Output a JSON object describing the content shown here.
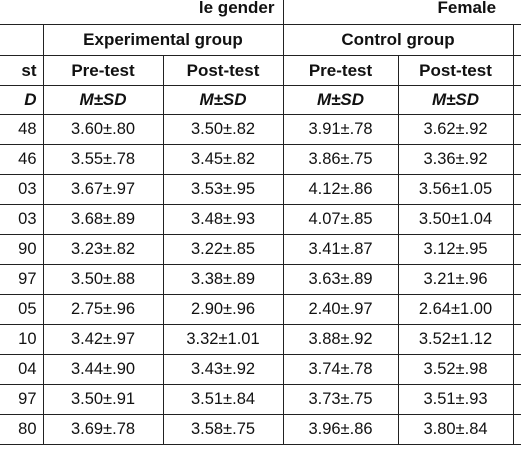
{
  "header": {
    "gender_left": "le gender",
    "gender_right": "Female",
    "experimental_group": "Experimental group",
    "control_group": "Control group",
    "first_col_test": "st",
    "first_col_stat": "D",
    "pre_test": "Pre-test",
    "post_test": "Post-test",
    "stat": "M±SD"
  },
  "rows": [
    {
      "first": "48",
      "exp_pre": "3.60±.80",
      "exp_post": "3.50±.82",
      "ctl_pre": "3.91±.78",
      "ctl_post": "3.62±.92"
    },
    {
      "first": "46",
      "exp_pre": "3.55±.78",
      "exp_post": "3.45±.82",
      "ctl_pre": "3.86±.75",
      "ctl_post": "3.36±.92"
    },
    {
      "first": "03",
      "exp_pre": "3.67±.97",
      "exp_post": "3.53±.95",
      "ctl_pre": "4.12±.86",
      "ctl_post": "3.56±1.05"
    },
    {
      "first": "03",
      "exp_pre": "3.68±.89",
      "exp_post": "3.48±.93",
      "ctl_pre": "4.07±.85",
      "ctl_post": "3.50±1.04"
    },
    {
      "first": "90",
      "exp_pre": "3.23±.82",
      "exp_post": "3.22±.85",
      "ctl_pre": "3.41±.87",
      "ctl_post": "3.12±.95"
    },
    {
      "first": "97",
      "exp_pre": "3.50±.88",
      "exp_post": "3.38±.89",
      "ctl_pre": "3.63±.89",
      "ctl_post": "3.21±.96"
    },
    {
      "first": "05",
      "exp_pre": "2.75±.96",
      "exp_post": "2.90±.96",
      "ctl_pre": "2.40±.97",
      "ctl_post": "2.64±1.00"
    },
    {
      "first": "10",
      "exp_pre": "3.42±.97",
      "exp_post": "3.32±1.01",
      "ctl_pre": "3.88±.92",
      "ctl_post": "3.52±1.12"
    },
    {
      "first": "04",
      "exp_pre": "3.44±.90",
      "exp_post": "3.43±.92",
      "ctl_pre": "3.74±.78",
      "ctl_post": "3.52±.98"
    },
    {
      "first": "97",
      "exp_pre": "3.50±.91",
      "exp_post": "3.51±.84",
      "ctl_pre": "3.73±.75",
      "ctl_post": "3.51±.93"
    },
    {
      "first": "80",
      "exp_pre": "3.69±.78",
      "exp_post": "3.58±.75",
      "ctl_pre": "3.96±.86",
      "ctl_post": "3.80±.84"
    }
  ]
}
